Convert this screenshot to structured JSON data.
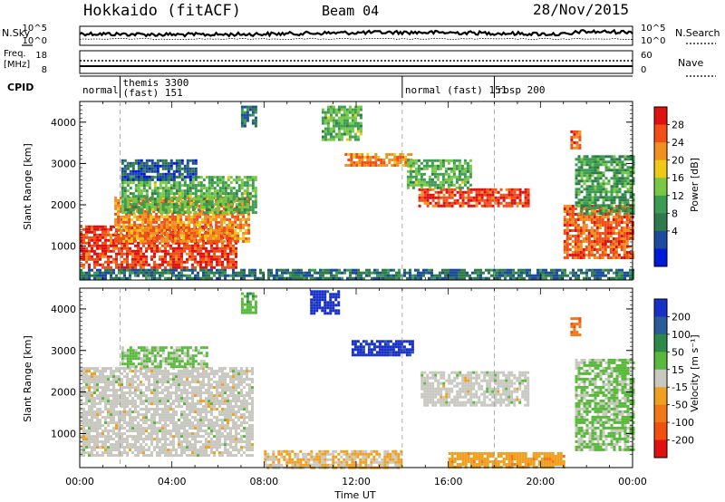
{
  "header": {
    "station": "Hokkaido (fitACF)",
    "beam": "Beam 04",
    "date": "28/Nov/2015"
  },
  "strip": {
    "nsky_label": "N.Sky",
    "nsearch_label": "N.Search",
    "noise_ticks": [
      "10^5",
      "10^0"
    ],
    "freq_label_1": "Freq.",
    "freq_label_2": "[MHz]",
    "freq_ticks": [
      "18",
      "8"
    ],
    "nave_label": "Nave",
    "nave_ticks": [
      "60",
      "0"
    ],
    "cpid_label": "CPID"
  },
  "cpid_segments": [
    {
      "start_h": 0.0,
      "end_h": 1.75,
      "label1": "normal",
      "label2": ""
    },
    {
      "start_h": 1.75,
      "end_h": 14.0,
      "label1": "themis 3300",
      "label2": "(fast) 151"
    },
    {
      "start_h": 14.0,
      "end_h": 18.0,
      "label1": "normal (fast) 151",
      "label2": ""
    },
    {
      "start_h": 18.0,
      "end_h": 24.0,
      "label1": "rbsp 200",
      "label2": ""
    }
  ],
  "colors": {
    "power_scale": [
      "#0018d8",
      "#1c4a9e",
      "#2e7a4a",
      "#3c9c52",
      "#78c846",
      "#f0c818",
      "#f09020",
      "#f05018",
      "#e01010"
    ],
    "velocity_scale": [
      "#1830c8",
      "#2a5c9c",
      "#2e8848",
      "#5ab83c",
      "#c8c8c0",
      "#f0a020",
      "#f07818",
      "#f05010",
      "#e01010"
    ]
  },
  "chart_data": [
    {
      "type": "heatmap",
      "name": "power",
      "xlabel": "",
      "ylabel": "Slant Range [km]",
      "colorbar_label": "Power [dB]",
      "colorbar_ticks": [
        "28",
        "24",
        "20",
        "16",
        "12",
        "8",
        "4"
      ],
      "colorbar_range": [
        0,
        32
      ],
      "x_ticks": [
        "00:00",
        "04:00",
        "08:00",
        "12:00",
        "16:00",
        "20:00",
        "00:00"
      ],
      "xlim": [
        0,
        24
      ],
      "y_ticks": [
        "4000",
        "3000",
        "2000",
        "1000"
      ],
      "ylim": [
        180,
        4500
      ],
      "regions": [
        {
          "t0": 0.0,
          "t1": 6.8,
          "r0": 500,
          "r1": 1500,
          "level": 28
        },
        {
          "t0": 1.5,
          "t1": 7.4,
          "r0": 1100,
          "r1": 2200,
          "level": 24
        },
        {
          "t0": 1.8,
          "t1": 7.6,
          "r0": 1800,
          "r1": 2700,
          "level": 14
        },
        {
          "t0": 1.8,
          "t1": 5.0,
          "r0": 2600,
          "r1": 3100,
          "level": 6
        },
        {
          "t0": 7.0,
          "t1": 7.6,
          "r0": 3900,
          "r1": 4400,
          "level": 8
        },
        {
          "t0": 11.5,
          "t1": 14.4,
          "r0": 2950,
          "r1": 3250,
          "level": 24
        },
        {
          "t0": 10.5,
          "t1": 12.2,
          "r0": 3600,
          "r1": 4400,
          "level": 14
        },
        {
          "t0": 14.7,
          "t1": 19.5,
          "r0": 2000,
          "r1": 2400,
          "level": 28
        },
        {
          "t0": 14.2,
          "t1": 17.0,
          "r0": 2400,
          "r1": 3100,
          "level": 14
        },
        {
          "t0": 21.0,
          "t1": 24.0,
          "r0": 700,
          "r1": 2000,
          "level": 26
        },
        {
          "t0": 21.5,
          "t1": 24.0,
          "r0": 1800,
          "r1": 3200,
          "level": 12
        },
        {
          "t0": 21.3,
          "t1": 21.7,
          "r0": 3400,
          "r1": 3800,
          "level": 26
        },
        {
          "t0": 0.0,
          "t1": 24.0,
          "r0": 200,
          "r1": 450,
          "level": 8
        }
      ]
    },
    {
      "type": "heatmap",
      "name": "velocity",
      "xlabel": "Time UT",
      "ylabel": "Slant Range [km]",
      "colorbar_label": "Velocity [m s⁻¹]",
      "colorbar_ticks": [
        "200",
        "100",
        "50",
        "15",
        "-15",
        "-50",
        "-100",
        "-200"
      ],
      "colorbar_range": [
        -250,
        250
      ],
      "x_ticks": [
        "00:00",
        "04:00",
        "08:00",
        "12:00",
        "16:00",
        "20:00",
        "00:00"
      ],
      "xlim": [
        0,
        24
      ],
      "y_ticks": [
        "4000",
        "3000",
        "2000",
        "1000"
      ],
      "ylim": [
        180,
        4500
      ],
      "regions": [
        {
          "t0": 0.0,
          "t1": 7.5,
          "r0": 500,
          "r1": 2600,
          "level": 0
        },
        {
          "t0": 1.8,
          "t1": 5.5,
          "r0": 2600,
          "r1": 3100,
          "level": 40
        },
        {
          "t0": 7.0,
          "t1": 7.6,
          "r0": 3900,
          "r1": 4400,
          "level": 60
        },
        {
          "t0": 10.0,
          "t1": 11.2,
          "r0": 3900,
          "r1": 4450,
          "level": 220
        },
        {
          "t0": 11.8,
          "t1": 14.4,
          "r0": 2900,
          "r1": 3250,
          "level": 220
        },
        {
          "t0": 14.8,
          "t1": 19.5,
          "r0": 1700,
          "r1": 2500,
          "level": 0
        },
        {
          "t0": 21.5,
          "t1": 24.0,
          "r0": 600,
          "r1": 2800,
          "level": 40
        },
        {
          "t0": 21.3,
          "t1": 21.7,
          "r0": 3400,
          "r1": 3800,
          "level": -120
        },
        {
          "t0": 8.0,
          "t1": 14.0,
          "r0": 200,
          "r1": 600,
          "level": -30
        },
        {
          "t0": 16.0,
          "t1": 21.0,
          "r0": 200,
          "r1": 550,
          "level": -60
        }
      ]
    }
  ]
}
